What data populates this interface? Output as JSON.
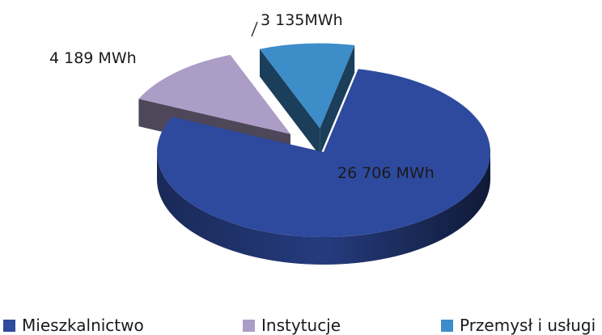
{
  "chart_data": {
    "type": "pie",
    "title": "",
    "categories": [
      "Mieszkalnictwo",
      "Instytucje",
      "Przemysł i usługi"
    ],
    "values": [
      26706,
      4189,
      3135
    ],
    "unit": "MWh",
    "data_labels": [
      "26 706  MWh",
      "4 189 MWh",
      "3 135MWh"
    ],
    "colors": [
      "#2e4a9e",
      "#ab9dc6",
      "#3d8dc9"
    ],
    "legend_position": "bottom",
    "three_d": true,
    "exploded": [
      "Instytucje",
      "Przemysł i usługi"
    ]
  }
}
